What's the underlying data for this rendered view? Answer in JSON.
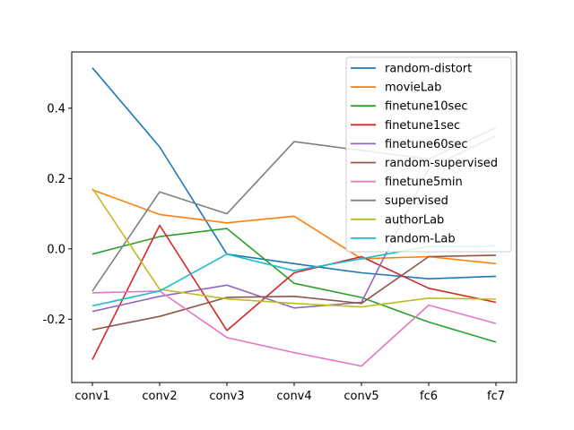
{
  "chart_data": {
    "type": "line",
    "title": "",
    "xlabel": "",
    "ylabel": "",
    "categories": [
      "conv1",
      "conv2",
      "conv3",
      "conv4",
      "conv5",
      "fc6",
      "fc7"
    ],
    "ylim": [
      -0.38,
      0.56
    ],
    "yticks": [
      "-0.2",
      "0.0",
      "0.2",
      "0.4"
    ],
    "ytick_values": [
      -0.2,
      0.0,
      0.2,
      0.4
    ],
    "grid": false,
    "legend_position": "upper-right",
    "series": [
      {
        "name": "random-distort",
        "color": "#1f77b4",
        "values": [
          0.515,
          0.29,
          -0.015,
          -0.042,
          -0.068,
          -0.085,
          -0.078
        ]
      },
      {
        "name": "movieLab",
        "color": "#ff7f0e",
        "values": [
          0.168,
          0.098,
          0.074,
          0.093,
          -0.028,
          -0.022,
          -0.042
        ]
      },
      {
        "name": "finetune10sec",
        "color": "#2ca02c",
        "values": [
          -0.015,
          0.035,
          0.058,
          -0.098,
          -0.138,
          -0.208,
          -0.265
        ]
      },
      {
        "name": "finetune1sec",
        "color": "#d62728",
        "values": [
          -0.315,
          0.067,
          -0.232,
          -0.068,
          -0.022,
          -0.112,
          -0.152
        ]
      },
      {
        "name": "finetune60sec",
        "color": "#9467bd",
        "values": [
          -0.178,
          -0.135,
          -0.103,
          -0.168,
          -0.152,
          0.228,
          0.322
        ]
      },
      {
        "name": "random-supervised",
        "color": "#8c564b",
        "values": [
          -0.23,
          -0.192,
          -0.138,
          -0.135,
          -0.155,
          -0.022,
          -0.018
        ]
      },
      {
        "name": "finetune5min",
        "color": "#e377c2",
        "values": [
          -0.125,
          -0.12,
          -0.252,
          -0.295,
          -0.333,
          -0.16,
          -0.212
        ]
      },
      {
        "name": "supervised",
        "color": "#7f7f7f",
        "values": [
          -0.12,
          0.162,
          0.1,
          0.305,
          0.28,
          0.255,
          0.345
        ]
      },
      {
        "name": "authorLab",
        "color": "#bcbd22",
        "values": [
          0.172,
          -0.115,
          -0.142,
          -0.155,
          -0.165,
          -0.14,
          -0.143
        ]
      },
      {
        "name": "random-Lab",
        "color": "#17becf",
        "values": [
          -0.162,
          -0.12,
          -0.015,
          -0.062,
          -0.028,
          0.007,
          0.008
        ]
      }
    ]
  }
}
